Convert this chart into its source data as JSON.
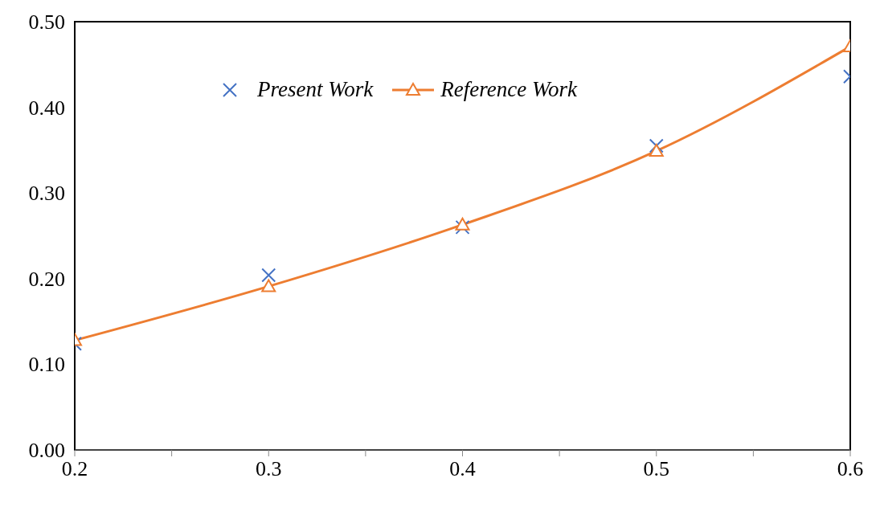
{
  "chart_data": {
    "type": "line",
    "series": [
      {
        "name": "Present Work",
        "type": "scatter",
        "marker": "cross",
        "color": "#4472c4",
        "x": [
          0.2,
          0.3,
          0.4,
          0.5,
          0.6
        ],
        "values": [
          0.124,
          0.204,
          0.26,
          0.355,
          0.436
        ]
      },
      {
        "name": "Reference Work",
        "marker": "triangle",
        "color": "#ed7d31",
        "x": [
          0.2,
          0.3,
          0.4,
          0.5,
          0.6
        ],
        "values": [
          0.128,
          0.191,
          0.263,
          0.349,
          0.471
        ]
      }
    ],
    "xlim": [
      0.2,
      0.6
    ],
    "xticks": [
      0.2,
      {
        "value": 0.25,
        "label": null
      },
      0.3,
      {
        "value": 0.35,
        "label": null
      },
      0.4,
      {
        "value": 0.45,
        "label": null
      },
      0.5,
      {
        "value": 0.55,
        "label": null
      },
      0.6
    ],
    "ylim": [
      0,
      0.5
    ],
    "yticks": [
      {
        "value": 0,
        "label": "0.00"
      },
      {
        "value": 0.1,
        "label": "0.10"
      },
      {
        "value": 0.2,
        "label": "0.20"
      },
      {
        "value": 0.3,
        "label": "0.30"
      },
      {
        "value": 0.4,
        "label": "0.40"
      },
      {
        "value": 0.5,
        "label": "0.50"
      }
    ],
    "grid": false,
    "legend": "top"
  }
}
